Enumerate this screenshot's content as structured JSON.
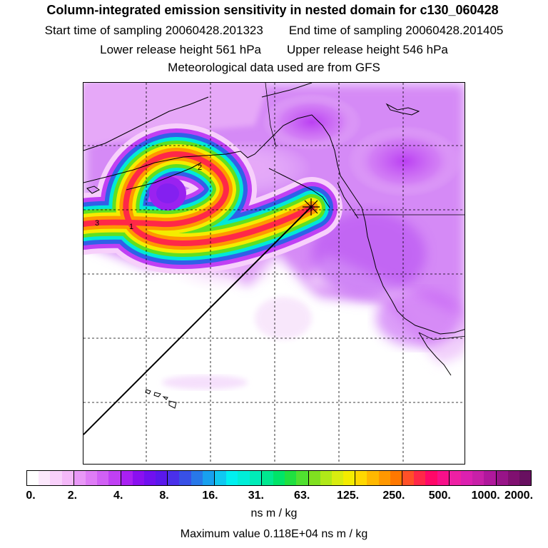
{
  "header": {
    "title": "Column-integrated emission sensitivity in nested domain for c130_060428",
    "start_label": "Start time of sampling 20060428.201323",
    "end_label": "End time of sampling 20060428.201405",
    "lower_label": "Lower release height  561 hPa",
    "upper_label": "Upper release height  546 hPa",
    "met_label": "Meteorological data used are from GFS"
  },
  "map": {
    "plume_labels": [
      "3",
      "1",
      "2"
    ],
    "grid": "dashed",
    "release_marker": "star-burst"
  },
  "colorbar": {
    "tick_labels": [
      "0.",
      "2.",
      "4.",
      "8.",
      "16.",
      "31.",
      "63.",
      "125.",
      "250.",
      "500.",
      "1000.",
      "2000."
    ],
    "colors": [
      "#ffffff",
      "#fce8fc",
      "#f8d0fa",
      "#f4b8f8",
      "#e998f7",
      "#df7cf6",
      "#d160f5",
      "#c040f4",
      "#a920f2",
      "#8a10f0",
      "#7010ef",
      "#5a18ec",
      "#4a30ea",
      "#3850e6",
      "#2878e8",
      "#18a0ee",
      "#10c8f0",
      "#00f0f0",
      "#00eed8",
      "#00ecb8",
      "#00e890",
      "#00e468",
      "#20e040",
      "#50e030",
      "#80e020",
      "#b0e818",
      "#d8ec10",
      "#f4ec00",
      "#ffd800",
      "#ffb800",
      "#ff9800",
      "#ff7800",
      "#ff5028",
      "#ff2848",
      "#ff0868",
      "#f8108a",
      "#ee20a4",
      "#dc20b0",
      "#c820a8",
      "#b0189c",
      "#981488",
      "#801070",
      "#681060"
    ],
    "units": "ns m / kg",
    "max_value_label": "Maximum value  0.118E+04 ns m / kg"
  }
}
